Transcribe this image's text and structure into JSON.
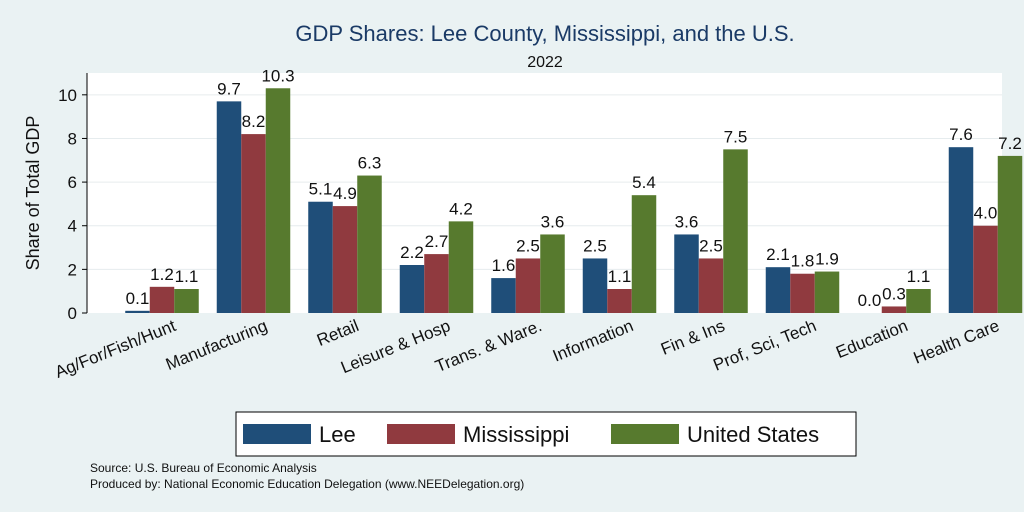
{
  "chart_data": {
    "type": "bar",
    "title": "GDP Shares: Lee County, Mississippi, and the U.S.",
    "subtitle": "2022",
    "ylabel": "Share of Total GDP",
    "xlabel": "",
    "ylim": [
      0,
      11
    ],
    "yticks": [
      0,
      2,
      4,
      6,
      8,
      10
    ],
    "grid": true,
    "legend_position": "bottom",
    "categories": [
      "Ag/For/Fish/Hunt",
      "Manufacturing",
      "Retail",
      "Leisure & Hosp",
      "Trans. & Ware.",
      "Information",
      "Fin & Ins",
      "Prof, Sci, Tech",
      "Education",
      "Health Care"
    ],
    "series": [
      {
        "name": "Lee",
        "color": "#1f4e79",
        "values": [
          0.1,
          9.7,
          5.1,
          2.2,
          1.6,
          2.5,
          3.6,
          2.1,
          0.0,
          7.6
        ],
        "labels": [
          "0.1",
          "9.7",
          "5.1",
          "2.2",
          "1.6",
          "2.5",
          "3.6",
          "2.1",
          "0.0",
          "7.6"
        ]
      },
      {
        "name": "Mississippi",
        "color": "#903a3f",
        "values": [
          1.2,
          8.2,
          4.9,
          2.7,
          2.5,
          1.1,
          2.5,
          1.8,
          0.3,
          4.0
        ],
        "labels": [
          "1.2",
          "8.2",
          "4.9",
          "2.7",
          "2.5",
          "1.1",
          "2.5",
          "1.8",
          "0.3",
          "4.0"
        ]
      },
      {
        "name": "United States",
        "color": "#577a2e",
        "values": [
          1.1,
          10.3,
          6.3,
          4.2,
          3.6,
          5.4,
          7.5,
          1.9,
          1.1,
          7.2
        ],
        "labels": [
          "1.1",
          "10.3",
          "6.3",
          "4.2",
          "3.6",
          "5.4",
          "7.5",
          "1.9",
          "1.1",
          "7.2"
        ]
      }
    ]
  },
  "footer": {
    "source": "Source: U.S. Bureau of Economic Analysis",
    "produced_by": "Produced by: National Economic Education Delegation (www.NEEDelegation.org)"
  }
}
